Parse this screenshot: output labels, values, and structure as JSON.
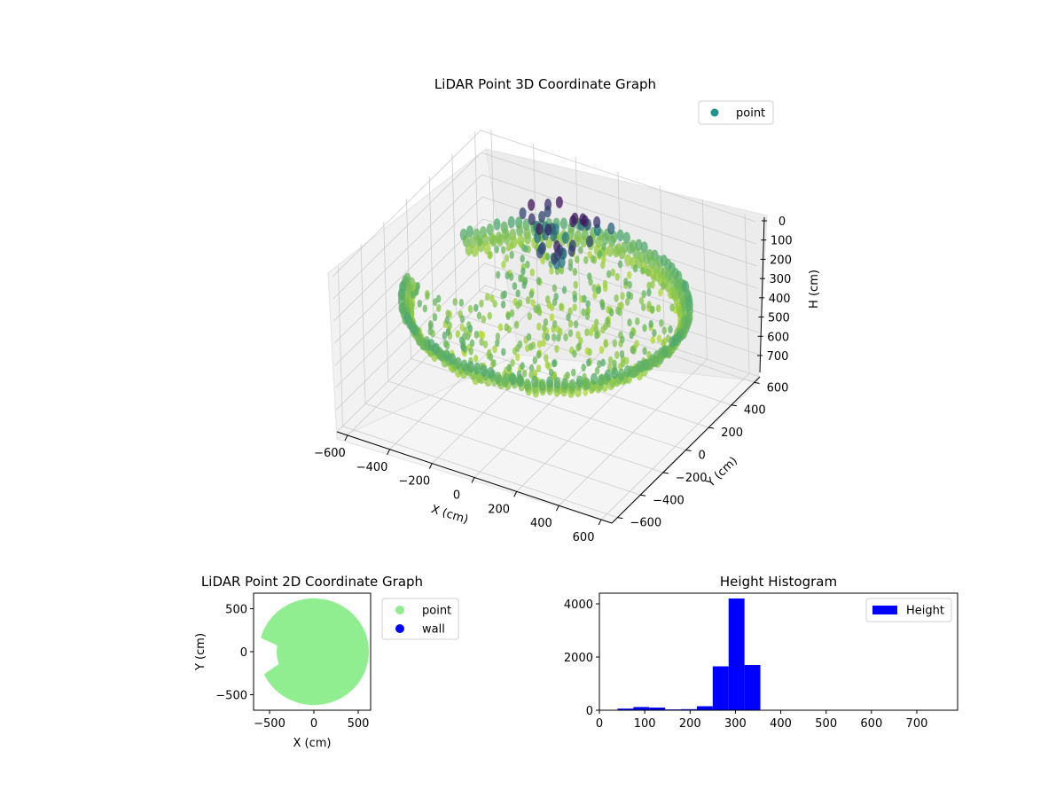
{
  "colors": {
    "point_3d_legend": "#21918c",
    "point_2d": "#90ee90",
    "wall": "#0000ff",
    "histogram": "#0000ff",
    "pane": "#f2f2f2",
    "grid": "#cccccc",
    "viridis_dark": "#440154",
    "viridis_mid": "#21918c",
    "viridis_light": "#bddf26"
  },
  "chart_data": [
    {
      "type": "scatter",
      "projection": "3d",
      "title": "LiDAR Point 3D Coordinate Graph",
      "xlabel": "X (cm)",
      "ylabel": "Y (cm)",
      "zlabel": "H (cm)",
      "xticks": [
        "−600",
        "−400",
        "−200",
        "0",
        "200",
        "400",
        "600"
      ],
      "yticks": [
        "−600",
        "−400",
        "−200",
        "0",
        "200",
        "400",
        "600"
      ],
      "zticks": [
        "0",
        "100",
        "200",
        "300",
        "400",
        "500",
        "600",
        "700"
      ],
      "z_axis_inverted": true,
      "colormap": "viridis",
      "legend": [
        "point"
      ],
      "legend_loc": "upper right",
      "shape": "roughly circular ring of points, radius ~600 cm, heights mostly 250–300 cm, dark cluster near the back at low height values",
      "grid": true
    },
    {
      "type": "scatter",
      "title": "LiDAR Point 2D Coordinate Graph",
      "xlabel": "X (cm)",
      "ylabel": "Y (cm)",
      "xticks": [
        "−500",
        "0",
        "500"
      ],
      "yticks": [
        "500",
        "0",
        "−500"
      ],
      "xlim": [
        -680,
        640
      ],
      "ylim": [
        -680,
        680
      ],
      "series": [
        {
          "name": "point",
          "description": "filled disc of radius ~600 cm with a notch on the left side"
        },
        {
          "name": "wall",
          "values": []
        }
      ],
      "legend": [
        "point",
        "wall"
      ],
      "legend_loc": "outside right"
    },
    {
      "type": "bar",
      "title": "Height Histogram",
      "xticks": [
        "0",
        "100",
        "200",
        "300",
        "400",
        "500",
        "600",
        "700"
      ],
      "yticks": [
        "0",
        "2000",
        "4000"
      ],
      "xlim": [
        0,
        790
      ],
      "ylim": [
        0,
        4400
      ],
      "bin_edges": [
        40,
        75,
        110,
        145,
        180,
        215,
        250,
        285,
        320,
        355
      ],
      "values": [
        60,
        120,
        100,
        30,
        40,
        150,
        1650,
        4200,
        1700,
        320
      ],
      "legend": [
        "Height"
      ],
      "legend_loc": "upper right"
    }
  ]
}
